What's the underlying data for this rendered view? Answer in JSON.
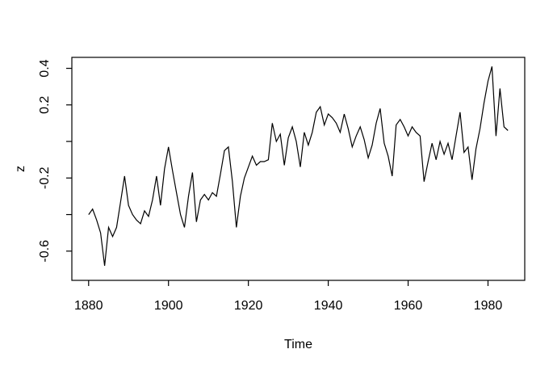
{
  "chart_data": {
    "type": "line",
    "title": "",
    "xlabel": "Time",
    "ylabel": "z",
    "grid": false,
    "legend": null,
    "background_color": "#ffffff",
    "line_color": "#000000",
    "axis_color": "#000000",
    "xlim": [
      1875.8,
      1989.2
    ],
    "ylim": [
      -0.76,
      0.46
    ],
    "x_ticks": [
      {
        "value": 1880,
        "label": "1880"
      },
      {
        "value": 1900,
        "label": "1900"
      },
      {
        "value": 1920,
        "label": "1920"
      },
      {
        "value": 1940,
        "label": "1940"
      },
      {
        "value": 1960,
        "label": "1960"
      },
      {
        "value": 1980,
        "label": "1980"
      }
    ],
    "y_ticks": [
      {
        "value": 0.4,
        "label": "0.4"
      },
      {
        "value": 0.2,
        "label": "0.2"
      },
      {
        "value": 0.0,
        "label": ""
      },
      {
        "value": -0.2,
        "label": "-0.2"
      },
      {
        "value": -0.4,
        "label": ""
      },
      {
        "value": -0.6,
        "label": "-0.6"
      }
    ],
    "series": [
      {
        "name": "z",
        "start_year": 1880,
        "end_year": 1985,
        "values": [
          -0.4,
          -0.37,
          -0.43,
          -0.5,
          -0.68,
          -0.47,
          -0.52,
          -0.47,
          -0.33,
          -0.19,
          -0.35,
          -0.4,
          -0.43,
          -0.45,
          -0.38,
          -0.41,
          -0.32,
          -0.19,
          -0.35,
          -0.15,
          -0.03,
          -0.16,
          -0.28,
          -0.4,
          -0.47,
          -0.3,
          -0.17,
          -0.44,
          -0.32,
          -0.29,
          -0.32,
          -0.28,
          -0.3,
          -0.18,
          -0.05,
          -0.03,
          -0.22,
          -0.47,
          -0.3,
          -0.2,
          -0.14,
          -0.08,
          -0.13,
          -0.11,
          -0.11,
          -0.1,
          0.1,
          0.0,
          0.04,
          -0.13,
          0.02,
          0.08,
          0.0,
          -0.14,
          0.05,
          -0.02,
          0.05,
          0.16,
          0.19,
          0.09,
          0.15,
          0.13,
          0.1,
          0.05,
          0.15,
          0.07,
          -0.03,
          0.03,
          0.08,
          0.01,
          -0.09,
          -0.02,
          0.1,
          0.18,
          -0.01,
          -0.08,
          -0.19,
          0.09,
          0.12,
          0.08,
          0.03,
          0.08,
          0.05,
          0.03,
          -0.22,
          -0.11,
          -0.01,
          -0.1,
          0.0,
          -0.07,
          -0.01,
          -0.1,
          0.03,
          0.16,
          -0.06,
          -0.03,
          -0.21,
          -0.04,
          0.07,
          0.21,
          0.33,
          0.41,
          0.03,
          0.29,
          0.08,
          0.06
        ]
      }
    ]
  }
}
